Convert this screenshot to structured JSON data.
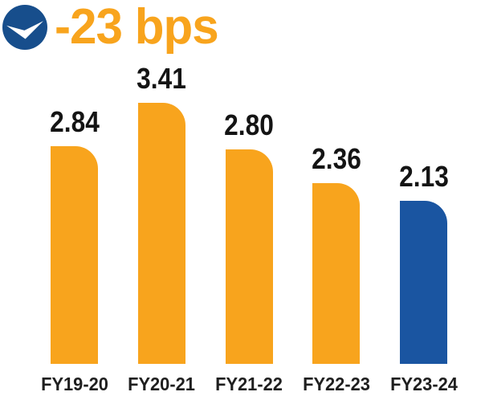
{
  "header": {
    "title": "-23 bps",
    "icon": "circle-down-arrow-icon"
  },
  "colors": {
    "orange": "#F8A41D",
    "blue": "#1A55A1",
    "icon_blue": "#174E8C",
    "icon_arrow": "#FFFFFF",
    "title_text": "#F8A41D",
    "label_text": "#141414"
  },
  "chart_data": {
    "type": "bar",
    "title": "-23 bps",
    "subtitle": "",
    "xlabel": "",
    "ylabel": "",
    "categories": [
      "FY19-20",
      "FY20-21",
      "FY21-22",
      "FY22-23",
      "FY23-24"
    ],
    "values": [
      2.84,
      3.41,
      2.8,
      2.36,
      2.13
    ],
    "value_labels": [
      "2.84",
      "3.41",
      "2.80",
      "2.36",
      "2.13"
    ],
    "bar_colors": [
      "orange",
      "orange",
      "orange",
      "orange",
      "blue"
    ],
    "ylim": [
      0,
      3.6
    ],
    "grid": false,
    "axes_visible": false,
    "legend_position": "none",
    "annotation": "-23 bps change indicated by header badge"
  }
}
